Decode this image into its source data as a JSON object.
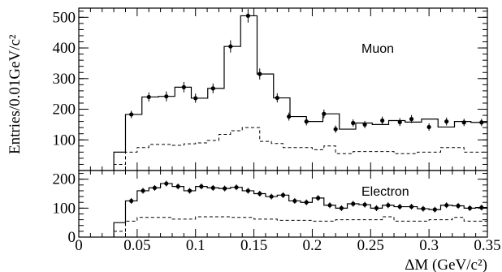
{
  "chart_data": {
    "type": "line",
    "ylabel": "Entries/0.01GeV/c²",
    "xlabel": "ΔM (GeV/c²)",
    "xlim": [
      0,
      0.35
    ],
    "x_ticks": [
      "0",
      "0.05",
      "0.1",
      "0.15",
      "0.2",
      "0.25",
      "0.3",
      "0.35"
    ],
    "bin_edges": [
      0.03,
      0.04,
      0.05,
      0.06,
      0.07,
      0.08,
      0.09,
      0.1,
      0.11,
      0.12,
      0.13,
      0.14,
      0.15,
      0.16,
      0.17,
      0.18,
      0.19,
      0.2,
      0.21,
      0.22,
      0.23,
      0.24,
      0.25,
      0.26,
      0.27,
      0.28,
      0.29,
      0.3,
      0.31,
      0.32,
      0.33,
      0.34,
      0.35
    ],
    "panels": [
      {
        "label": "Muon",
        "ylim": [
          0,
          530
        ],
        "y_ticks": [
          100,
          200,
          300,
          400,
          500
        ],
        "series": [
          {
            "style": "solid-histogram-with-points",
            "values": [
              60,
              183,
              240,
              242,
              272,
              236,
              268,
              405,
              505,
              315,
              237,
              176,
              160,
              185,
              135,
              155,
              150,
              163,
              158,
              168,
              142,
              160,
              157
            ],
            "point_x": [
              0.045,
              0.055,
              0.065,
              0.075,
              0.085,
              0.095,
              0.105,
              0.115,
              0.125,
              0.135,
              0.145,
              0.155,
              0.165,
              0.175,
              0.185,
              0.195,
              0.205,
              0.215,
              0.225,
              0.235,
              0.245,
              0.255,
              0.265
            ],
            "points": [
              {
                "x": 0.045,
                "y": 183
              },
              {
                "x": 0.06,
                "y": 240
              },
              {
                "x": 0.075,
                "y": 242
              },
              {
                "x": 0.09,
                "y": 272
              },
              {
                "x": 0.1,
                "y": 236
              },
              {
                "x": 0.115,
                "y": 268
              },
              {
                "x": 0.13,
                "y": 405
              },
              {
                "x": 0.145,
                "y": 505
              },
              {
                "x": 0.155,
                "y": 315
              },
              {
                "x": 0.17,
                "y": 237
              },
              {
                "x": 0.18,
                "y": 176
              },
              {
                "x": 0.195,
                "y": 160
              },
              {
                "x": 0.21,
                "y": 185
              },
              {
                "x": 0.22,
                "y": 135
              },
              {
                "x": 0.235,
                "y": 155
              },
              {
                "x": 0.245,
                "y": 150
              },
              {
                "x": 0.26,
                "y": 163
              },
              {
                "x": 0.275,
                "y": 158
              },
              {
                "x": 0.285,
                "y": 168
              },
              {
                "x": 0.3,
                "y": 142
              },
              {
                "x": 0.315,
                "y": 160
              },
              {
                "x": 0.33,
                "y": 157
              },
              {
                "x": 0.345,
                "y": 157
              }
            ],
            "errors": [
              12,
              15,
              16,
              17,
              15,
              16,
              20,
              22,
              18,
              15,
              13,
              13,
              14,
              12,
              12,
              12,
              13,
              13,
              13,
              12,
              13,
              12,
              12
            ]
          },
          {
            "style": "dashed-histogram",
            "steps": [
              {
                "x0": 0.03,
                "x1": 0.04,
                "y": 20
              },
              {
                "x0": 0.04,
                "x1": 0.05,
                "y": 60
              },
              {
                "x0": 0.05,
                "x1": 0.06,
                "y": 75
              },
              {
                "x0": 0.06,
                "x1": 0.08,
                "y": 85
              },
              {
                "x0": 0.08,
                "x1": 0.09,
                "y": 82
              },
              {
                "x0": 0.09,
                "x1": 0.1,
                "y": 87
              },
              {
                "x0": 0.1,
                "x1": 0.11,
                "y": 90
              },
              {
                "x0": 0.11,
                "x1": 0.12,
                "y": 98
              },
              {
                "x0": 0.12,
                "x1": 0.13,
                "y": 118
              },
              {
                "x0": 0.13,
                "x1": 0.14,
                "y": 130
              },
              {
                "x0": 0.14,
                "x1": 0.155,
                "y": 140
              },
              {
                "x0": 0.155,
                "x1": 0.165,
                "y": 95
              },
              {
                "x0": 0.165,
                "x1": 0.175,
                "y": 88
              },
              {
                "x0": 0.175,
                "x1": 0.2,
                "y": 75
              },
              {
                "x0": 0.2,
                "x1": 0.21,
                "y": 68
              },
              {
                "x0": 0.21,
                "x1": 0.22,
                "y": 80
              },
              {
                "x0": 0.22,
                "x1": 0.235,
                "y": 55
              },
              {
                "x0": 0.235,
                "x1": 0.27,
                "y": 62
              },
              {
                "x0": 0.27,
                "x1": 0.29,
                "y": 55
              },
              {
                "x0": 0.29,
                "x1": 0.31,
                "y": 60
              },
              {
                "x0": 0.31,
                "x1": 0.33,
                "y": 75
              },
              {
                "x0": 0.33,
                "x1": 0.35,
                "y": 60
              }
            ]
          }
        ]
      },
      {
        "label": "Electron",
        "ylim": [
          0,
          230
        ],
        "y_ticks": [
          0,
          100,
          200
        ],
        "series": [
          {
            "style": "solid-histogram-with-points",
            "points": [
              {
                "x": 0.045,
                "y": 125
              },
              {
                "x": 0.055,
                "y": 160
              },
              {
                "x": 0.065,
                "y": 170
              },
              {
                "x": 0.075,
                "y": 185
              },
              {
                "x": 0.085,
                "y": 175
              },
              {
                "x": 0.095,
                "y": 160
              },
              {
                "x": 0.105,
                "y": 175
              },
              {
                "x": 0.115,
                "y": 170
              },
              {
                "x": 0.125,
                "y": 168
              },
              {
                "x": 0.135,
                "y": 172
              },
              {
                "x": 0.145,
                "y": 160
              },
              {
                "x": 0.155,
                "y": 150
              },
              {
                "x": 0.165,
                "y": 140
              },
              {
                "x": 0.175,
                "y": 145
              },
              {
                "x": 0.185,
                "y": 125
              },
              {
                "x": 0.195,
                "y": 120
              },
              {
                "x": 0.205,
                "y": 135
              },
              {
                "x": 0.215,
                "y": 110
              },
              {
                "x": 0.225,
                "y": 100
              },
              {
                "x": 0.235,
                "y": 115
              },
              {
                "x": 0.245,
                "y": 112
              },
              {
                "x": 0.255,
                "y": 100
              },
              {
                "x": 0.265,
                "y": 110
              },
              {
                "x": 0.275,
                "y": 105
              },
              {
                "x": 0.285,
                "y": 105
              },
              {
                "x": 0.295,
                "y": 98
              },
              {
                "x": 0.305,
                "y": 95
              },
              {
                "x": 0.315,
                "y": 110
              },
              {
                "x": 0.325,
                "y": 108
              },
              {
                "x": 0.335,
                "y": 100
              },
              {
                "x": 0.345,
                "y": 102
              }
            ],
            "errors": 10,
            "steps": [
              {
                "x0": 0.03,
                "x1": 0.04,
                "y": 50
              },
              {
                "x0": 0.04,
                "x1": 0.05,
                "y": 125
              },
              {
                "x0": 0.05,
                "x1": 0.06,
                "y": 160
              },
              {
                "x0": 0.06,
                "x1": 0.07,
                "y": 170
              },
              {
                "x0": 0.07,
                "x1": 0.08,
                "y": 185
              },
              {
                "x0": 0.08,
                "x1": 0.09,
                "y": 175
              },
              {
                "x0": 0.09,
                "x1": 0.1,
                "y": 160
              },
              {
                "x0": 0.1,
                "x1": 0.11,
                "y": 175
              },
              {
                "x0": 0.11,
                "x1": 0.12,
                "y": 170
              },
              {
                "x0": 0.12,
                "x1": 0.13,
                "y": 168
              },
              {
                "x0": 0.13,
                "x1": 0.14,
                "y": 172
              },
              {
                "x0": 0.14,
                "x1": 0.15,
                "y": 160
              },
              {
                "x0": 0.15,
                "x1": 0.16,
                "y": 150
              },
              {
                "x0": 0.16,
                "x1": 0.17,
                "y": 140
              },
              {
                "x0": 0.17,
                "x1": 0.18,
                "y": 145
              },
              {
                "x0": 0.18,
                "x1": 0.19,
                "y": 125
              },
              {
                "x0": 0.19,
                "x1": 0.2,
                "y": 120
              },
              {
                "x0": 0.2,
                "x1": 0.21,
                "y": 135
              },
              {
                "x0": 0.21,
                "x1": 0.22,
                "y": 110
              },
              {
                "x0": 0.22,
                "x1": 0.23,
                "y": 100
              },
              {
                "x0": 0.23,
                "x1": 0.24,
                "y": 115
              },
              {
                "x0": 0.24,
                "x1": 0.25,
                "y": 112
              },
              {
                "x0": 0.25,
                "x1": 0.26,
                "y": 100
              },
              {
                "x0": 0.26,
                "x1": 0.27,
                "y": 110
              },
              {
                "x0": 0.27,
                "x1": 0.28,
                "y": 105
              },
              {
                "x0": 0.28,
                "x1": 0.29,
                "y": 105
              },
              {
                "x0": 0.29,
                "x1": 0.3,
                "y": 98
              },
              {
                "x0": 0.3,
                "x1": 0.31,
                "y": 95
              },
              {
                "x0": 0.31,
                "x1": 0.32,
                "y": 110
              },
              {
                "x0": 0.32,
                "x1": 0.33,
                "y": 108
              },
              {
                "x0": 0.33,
                "x1": 0.34,
                "y": 100
              },
              {
                "x0": 0.34,
                "x1": 0.35,
                "y": 102
              }
            ]
          },
          {
            "style": "dashed-histogram",
            "steps": [
              {
                "x0": 0.03,
                "x1": 0.04,
                "y": 20
              },
              {
                "x0": 0.04,
                "x1": 0.05,
                "y": 55
              },
              {
                "x0": 0.05,
                "x1": 0.08,
                "y": 68
              },
              {
                "x0": 0.08,
                "x1": 0.1,
                "y": 62
              },
              {
                "x0": 0.1,
                "x1": 0.13,
                "y": 70
              },
              {
                "x0": 0.13,
                "x1": 0.15,
                "y": 68
              },
              {
                "x0": 0.15,
                "x1": 0.17,
                "y": 62
              },
              {
                "x0": 0.17,
                "x1": 0.2,
                "y": 58
              },
              {
                "x0": 0.2,
                "x1": 0.22,
                "y": 55
              },
              {
                "x0": 0.22,
                "x1": 0.26,
                "y": 60
              },
              {
                "x0": 0.26,
                "x1": 0.27,
                "y": 70
              },
              {
                "x0": 0.27,
                "x1": 0.3,
                "y": 55
              },
              {
                "x0": 0.3,
                "x1": 0.32,
                "y": 60
              },
              {
                "x0": 0.32,
                "x1": 0.33,
                "y": 68
              },
              {
                "x0": 0.33,
                "x1": 0.35,
                "y": 55
              }
            ]
          }
        ]
      }
    ]
  }
}
